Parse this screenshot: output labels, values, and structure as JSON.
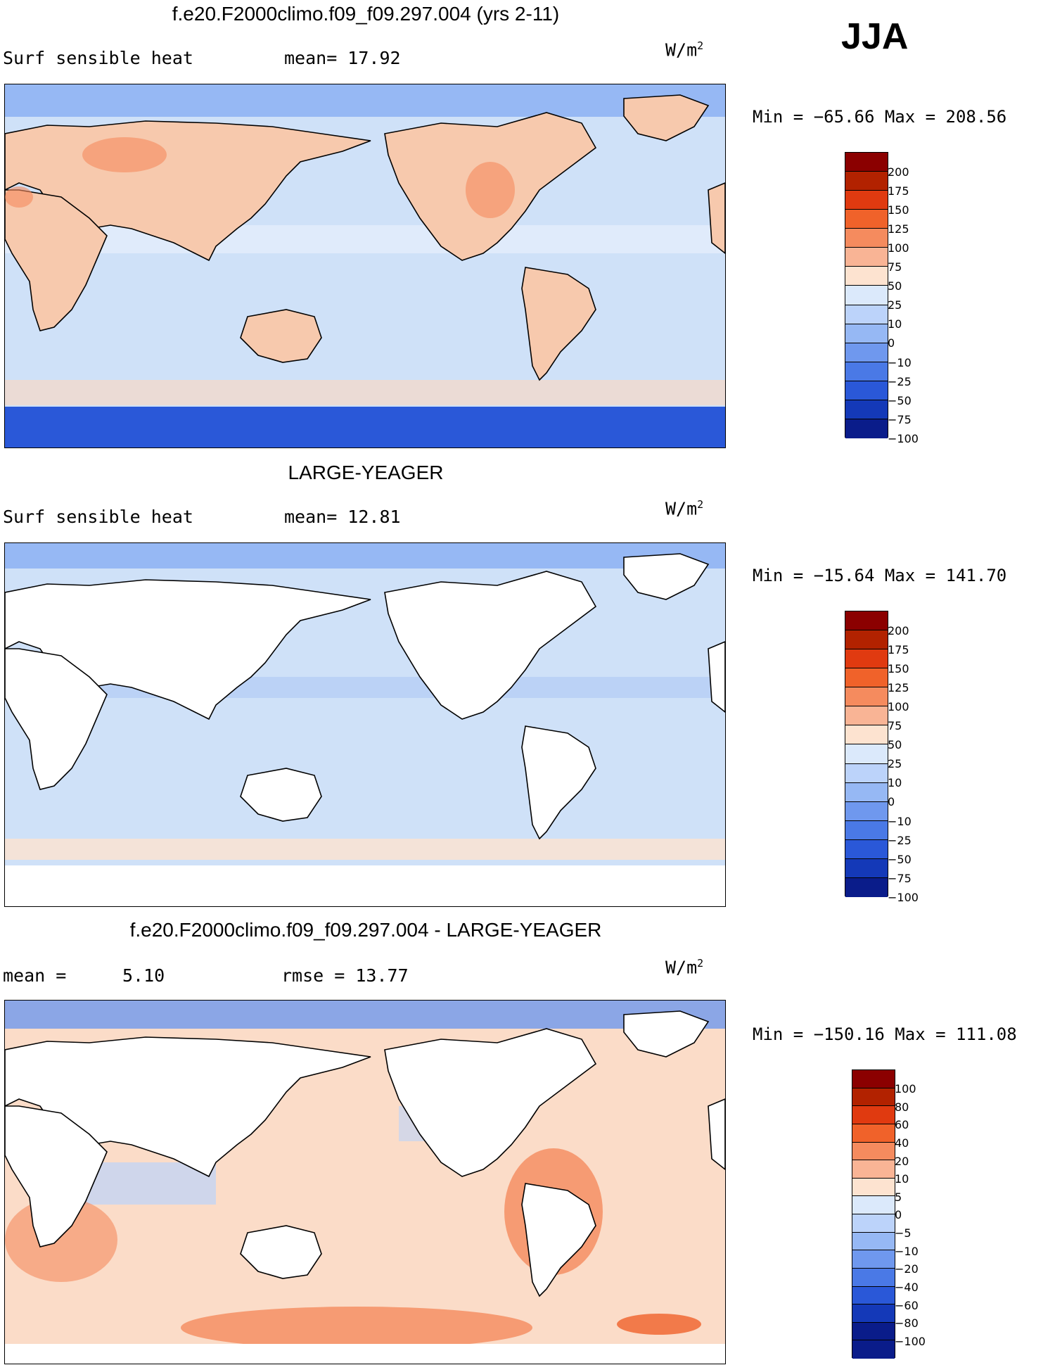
{
  "season": "JJA",
  "panels": [
    {
      "title": "f.e20.F2000climo.f09_f09.297.004 (yrs 2-11)",
      "left_label": "Surf sensible heat",
      "stat1": "mean=   17.92",
      "stat2": "",
      "units": "W/m",
      "units_sup": "2",
      "minmax": "Min = −65.66 Max = 208.56",
      "cbar_levels": [
        "200",
        "175",
        "150",
        "125",
        "100",
        "75",
        "50",
        "25",
        "10",
        "0",
        "−10",
        "−25",
        "−50",
        "−75",
        "−100"
      ],
      "cbar_colors": [
        "#8b0000",
        "#b22200",
        "#e03a10",
        "#f0622a",
        "#f58b5e",
        "#f9b495",
        "#fde3d0",
        "#dbe9fb",
        "#bcd3fa",
        "#96b8f4",
        "#6f98ee",
        "#4a79e6",
        "#2a58d8",
        "#1439b8",
        "#0a1c8a"
      ],
      "land_fill": "#f7c9ad",
      "ocean_fill": "#cfe1f8",
      "ice_fill": "#2a58d8"
    },
    {
      "title": "LARGE-YEAGER",
      "left_label": "Surf sensible heat",
      "stat1": "mean=   12.81",
      "stat2": "",
      "units": "W/m",
      "units_sup": "2",
      "minmax": "Min = −15.64 Max = 141.70",
      "cbar_levels": [
        "200",
        "175",
        "150",
        "125",
        "100",
        "75",
        "50",
        "25",
        "10",
        "0",
        "−10",
        "−25",
        "−50",
        "−75",
        "−100"
      ],
      "cbar_colors": [
        "#8b0000",
        "#b22200",
        "#e03a10",
        "#f0622a",
        "#f58b5e",
        "#f9b495",
        "#fde3d0",
        "#dbe9fb",
        "#bcd3fa",
        "#96b8f4",
        "#6f98ee",
        "#4a79e6",
        "#2a58d8",
        "#1439b8",
        "#0a1c8a"
      ],
      "land_fill": "#ffffff",
      "ocean_fill": "#cfe1f8",
      "ice_fill": "#ffffff"
    },
    {
      "title": "f.e20.F2000climo.f09_f09.297.004 - LARGE-YEAGER",
      "left_label": "mean =",
      "stat1": "5.10",
      "stat2": "rmse =   13.77",
      "units": "W/m",
      "units_sup": "2",
      "minmax": "Min = −150.16 Max = 111.08",
      "cbar_levels": [
        "100",
        "80",
        "60",
        "40",
        "20",
        "10",
        "5",
        "0",
        "−5",
        "−10",
        "−20",
        "−40",
        "−60",
        "−80",
        "−100"
      ],
      "cbar_colors": [
        "#8b0000",
        "#b22200",
        "#e03a10",
        "#f0622a",
        "#f58b5e",
        "#f9b495",
        "#fde3d0",
        "#dbe9fb",
        "#bcd3fa",
        "#96b8f4",
        "#6f98ee",
        "#4a79e6",
        "#2a58d8",
        "#1439b8",
        "#0a1c8a",
        "#0a1c8a"
      ],
      "land_fill": "#ffffff",
      "ocean_fill": "#fbdcc8",
      "ice_fill": "#ffffff"
    }
  ]
}
